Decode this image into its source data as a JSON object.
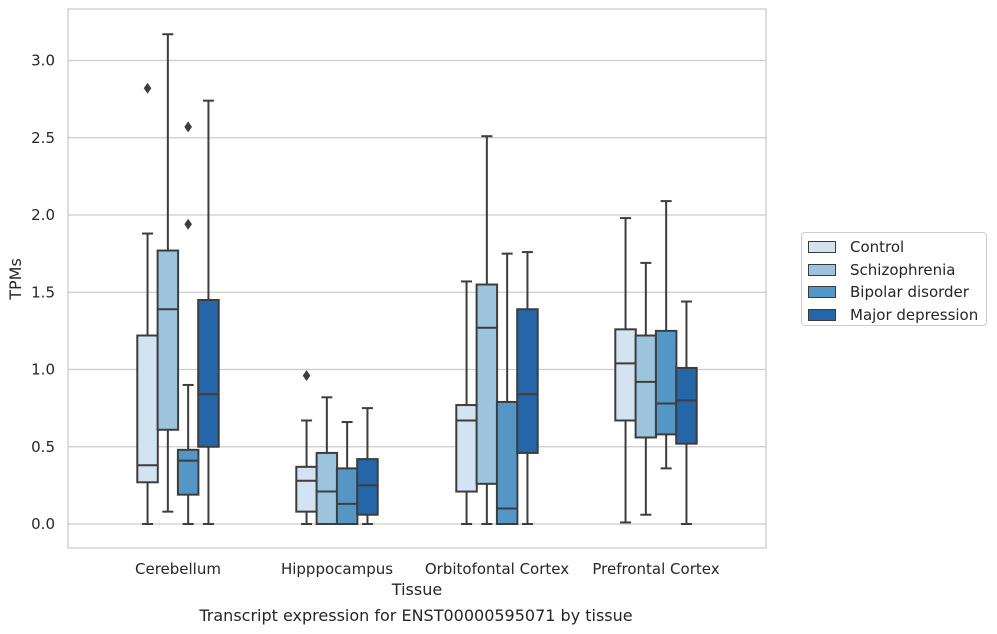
{
  "chart_data": {
    "type": "boxplot",
    "xlabel": "Tissue",
    "ylabel": "TPMs",
    "caption": "Transcript expression for ENST00000595071 by tissue",
    "ylim": [
      -0.15,
      3.33
    ],
    "yticks": [
      0.0,
      0.5,
      1.0,
      1.5,
      2.0,
      2.5,
      3.0
    ],
    "ytick_labels": [
      "0.0",
      "0.5",
      "1.0",
      "1.5",
      "2.0",
      "2.5",
      "3.0"
    ],
    "grid": "horizontal",
    "legend_position": "right",
    "categories": [
      "Cerebellum",
      "Hipppocampus",
      "Orbitofontal Cortex",
      "Prefrontal Cortex"
    ],
    "series": [
      {
        "name": "Control",
        "color": "#d4e3f1",
        "boxes": [
          {
            "whisker_low": 0.0,
            "q1": 0.27,
            "median": 0.38,
            "q3": 1.22,
            "whisker_high": 1.88,
            "outliers": [
              2.82
            ]
          },
          {
            "whisker_low": 0.0,
            "q1": 0.08,
            "median": 0.28,
            "q3": 0.37,
            "whisker_high": 0.67,
            "outliers": [
              0.96
            ]
          },
          {
            "whisker_low": 0.0,
            "q1": 0.21,
            "median": 0.67,
            "q3": 0.77,
            "whisker_high": 1.57,
            "outliers": []
          },
          {
            "whisker_low": 0.01,
            "q1": 0.67,
            "median": 1.04,
            "q3": 1.26,
            "whisker_high": 1.98,
            "outliers": []
          }
        ]
      },
      {
        "name": "Schizophrenia",
        "color": "#9dc4dd",
        "boxes": [
          {
            "whisker_low": 0.08,
            "q1": 0.61,
            "median": 1.39,
            "q3": 1.77,
            "whisker_high": 3.17,
            "outliers": []
          },
          {
            "whisker_low": 0.0,
            "q1": 0.0,
            "median": 0.21,
            "q3": 0.46,
            "whisker_high": 0.82,
            "outliers": []
          },
          {
            "whisker_low": 0.0,
            "q1": 0.26,
            "median": 1.27,
            "q3": 1.55,
            "whisker_high": 2.51,
            "outliers": []
          },
          {
            "whisker_low": 0.06,
            "q1": 0.56,
            "median": 0.92,
            "q3": 1.22,
            "whisker_high": 1.69,
            "outliers": []
          }
        ]
      },
      {
        "name": "Bipolar disorder",
        "color": "#5497c6",
        "boxes": [
          {
            "whisker_low": 0.0,
            "q1": 0.19,
            "median": 0.41,
            "q3": 0.48,
            "whisker_high": 0.9,
            "outliers": [
              1.94,
              2.57
            ]
          },
          {
            "whisker_low": 0.0,
            "q1": 0.0,
            "median": 0.13,
            "q3": 0.36,
            "whisker_high": 0.66,
            "outliers": []
          },
          {
            "whisker_low": 0.0,
            "q1": 0.0,
            "median": 0.1,
            "q3": 0.79,
            "whisker_high": 1.75,
            "outliers": []
          },
          {
            "whisker_low": 0.36,
            "q1": 0.58,
            "median": 0.78,
            "q3": 1.25,
            "whisker_high": 2.09,
            "outliers": []
          }
        ]
      },
      {
        "name": "Major depression",
        "color": "#2466a8",
        "boxes": [
          {
            "whisker_low": 0.0,
            "q1": 0.5,
            "median": 0.84,
            "q3": 1.45,
            "whisker_high": 2.74,
            "outliers": []
          },
          {
            "whisker_low": 0.0,
            "q1": 0.06,
            "median": 0.25,
            "q3": 0.42,
            "whisker_high": 0.75,
            "outliers": []
          },
          {
            "whisker_low": 0.0,
            "q1": 0.46,
            "median": 0.84,
            "q3": 1.39,
            "whisker_high": 1.76,
            "outliers": []
          },
          {
            "whisker_low": 0.0,
            "q1": 0.52,
            "median": 0.8,
            "q3": 1.01,
            "whisker_high": 1.44,
            "outliers": []
          }
        ]
      }
    ]
  }
}
